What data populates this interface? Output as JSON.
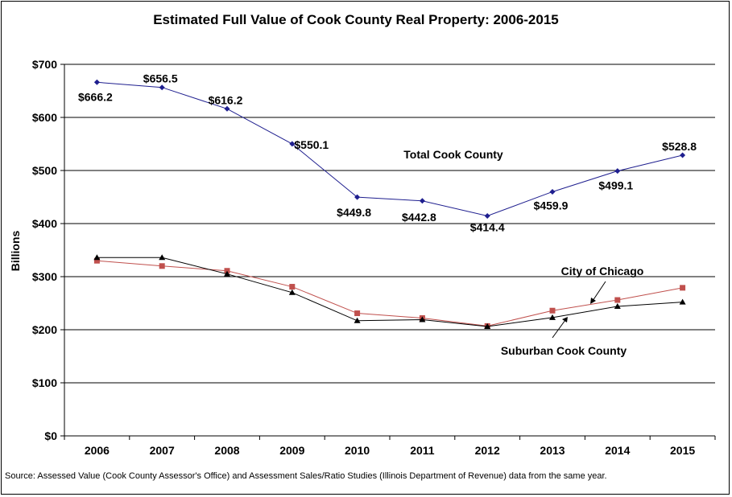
{
  "chart_data": {
    "type": "line",
    "title": "Estimated Full Value of Cook County Real Property: 2006-2015",
    "xlabel": "",
    "ylabel": "Billions",
    "ylim": [
      0,
      700
    ],
    "y_ticks": [
      0,
      100,
      200,
      300,
      400,
      500,
      600,
      700
    ],
    "y_tick_labels": [
      "$0",
      "$100",
      "$200",
      "$300",
      "$400",
      "$500",
      "$600",
      "$700"
    ],
    "categories": [
      "2006",
      "2007",
      "2008",
      "2009",
      "2010",
      "2011",
      "2012",
      "2013",
      "2014",
      "2015"
    ],
    "grid": true,
    "legend": "none (inline annotations)",
    "series": [
      {
        "name": "Total Cook County",
        "color": "#1F1F8F",
        "marker": "diamond",
        "values": [
          666.2,
          656.5,
          616.2,
          550.1,
          449.8,
          442.8,
          414.4,
          459.9,
          499.1,
          528.8
        ],
        "labels": [
          "$666.2",
          "$656.5",
          "$616.2",
          "$550.1",
          "$449.8",
          "$442.8",
          "$414.4",
          "$459.9",
          "$499.1",
          "$528.8"
        ]
      },
      {
        "name": "City of Chicago",
        "color": "#C0504D",
        "marker": "square",
        "values": [
          330,
          320,
          311,
          281,
          231,
          222,
          207,
          236,
          256,
          279
        ]
      },
      {
        "name": "Suburban Cook County",
        "color": "#000000",
        "marker": "triangle",
        "values": [
          336,
          336,
          305,
          270,
          217,
          219,
          206,
          223,
          244,
          252
        ]
      }
    ],
    "annotations": {
      "total": "Total Cook County",
      "city": "City of Chicago",
      "suburban": "Suburban Cook County"
    }
  },
  "source_note": "Source: Assessed Value (Cook County Assessor's Office) and Assessment Sales/Ratio Studies (Illinois Department of Revenue) data from the same year."
}
